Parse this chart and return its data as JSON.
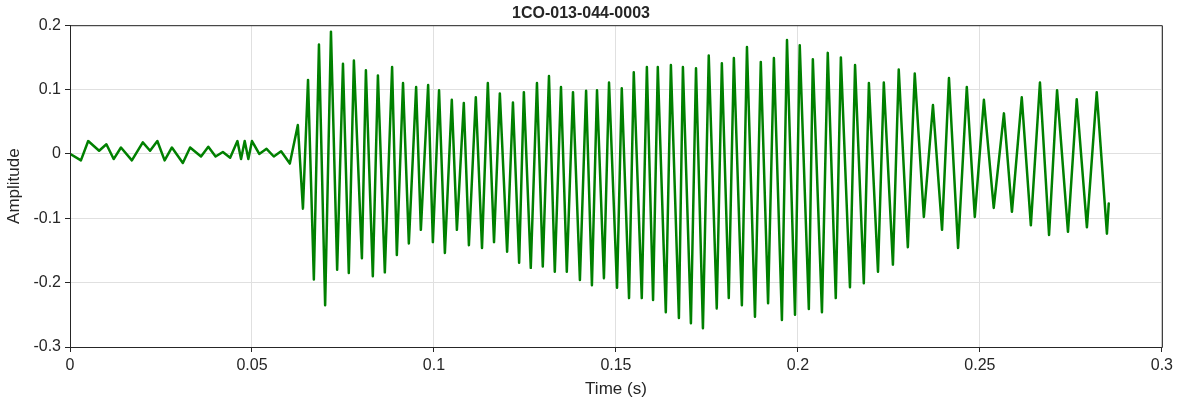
{
  "chart_data": {
    "type": "line",
    "title": "1CO-013-044-0003",
    "xlabel": "Time (s)",
    "ylabel": "Amplitude",
    "xlim": [
      0,
      0.3
    ],
    "xticks": [
      0,
      0.05,
      0.1,
      0.15,
      0.2,
      0.25,
      0.3
    ],
    "ylim": [
      -0.3,
      0.2
    ],
    "yticks": [
      -0.3,
      -0.2,
      -0.1,
      0,
      0.1,
      0.2
    ],
    "grid": true,
    "marker": "none",
    "line_style": "solid",
    "series": [
      {
        "color": "#008000",
        "x": [
          0,
          0.003,
          0.005,
          0.008,
          0.01,
          0.012,
          0.014,
          0.017,
          0.02,
          0.022,
          0.024,
          0.026,
          0.028,
          0.031,
          0.033,
          0.036,
          0.038,
          0.04,
          0.042,
          0.044,
          0.046,
          0.047,
          0.048,
          0.049,
          0.05,
          0.052,
          0.054,
          0.056,
          0.058,
          0.0604,
          0.0626,
          0.064,
          0.0654,
          0.067,
          0.0684,
          0.0701,
          0.0717,
          0.0734,
          0.075,
          0.0766,
          0.078,
          0.0802,
          0.0813,
          0.0832,
          0.0846,
          0.0865,
          0.0885,
          0.0898,
          0.0915,
          0.0931,
          0.0951,
          0.0964,
          0.0984,
          0.0997,
          0.1014,
          0.103,
          0.1049,
          0.1063,
          0.1082,
          0.1096,
          0.1115,
          0.1132,
          0.1148,
          0.1165,
          0.1181,
          0.1201,
          0.1217,
          0.1234,
          0.1247,
          0.1266,
          0.1283,
          0.1299,
          0.1316,
          0.1332,
          0.1349,
          0.1365,
          0.1382,
          0.1401,
          0.1418,
          0.1434,
          0.1448,
          0.1467,
          0.1481,
          0.1503,
          0.1516,
          0.1536,
          0.1549,
          0.1571,
          0.1585,
          0.1602,
          0.1615,
          0.1637,
          0.1651,
          0.1673,
          0.1684,
          0.1706,
          0.172,
          0.1739,
          0.1755,
          0.1777,
          0.1791,
          0.181,
          0.1824,
          0.1846,
          0.186,
          0.1882,
          0.1898,
          0.1918,
          0.1934,
          0.1956,
          0.197,
          0.1992,
          0.2005,
          0.203,
          0.2041,
          0.2066,
          0.2082,
          0.2104,
          0.2118,
          0.2143,
          0.2157,
          0.2181,
          0.2195,
          0.222,
          0.2236,
          0.2261,
          0.2277,
          0.2302,
          0.2321,
          0.2346,
          0.2371,
          0.2396,
          0.2415,
          0.244,
          0.2464,
          0.2486,
          0.2511,
          0.2538,
          0.2566,
          0.2588,
          0.2615,
          0.264,
          0.2665,
          0.269,
          0.2712,
          0.2742,
          0.2766,
          0.2794,
          0.2821,
          0.2849,
          0.2854
        ],
        "values": [
          0,
          -0.01,
          0.02,
          0.005,
          0.015,
          -0.008,
          0.01,
          -0.01,
          0.018,
          0.005,
          0.02,
          -0.01,
          0.01,
          -0.014,
          0.01,
          -0.004,
          0.011,
          -0.004,
          0.003,
          -0.006,
          0.02,
          -0.008,
          0.02,
          -0.008,
          0.02,
          0,
          0.008,
          -0.004,
          0.004,
          -0.015,
          0.045,
          -0.085,
          0.115,
          -0.195,
          0.17,
          -0.235,
          0.19,
          -0.18,
          0.14,
          -0.185,
          0.145,
          -0.162,
          0.13,
          -0.19,
          0.122,
          -0.184,
          0.135,
          -0.157,
          0.11,
          -0.139,
          0.104,
          -0.118,
          0.107,
          -0.137,
          0.099,
          -0.154,
          0.084,
          -0.118,
          0.079,
          -0.142,
          0.088,
          -0.146,
          0.11,
          -0.137,
          0.094,
          -0.152,
          0.08,
          -0.169,
          0.096,
          -0.177,
          0.11,
          -0.175,
          0.121,
          -0.183,
          0.104,
          -0.183,
          0.096,
          -0.196,
          0.098,
          -0.204,
          0.099,
          -0.193,
          0.111,
          -0.208,
          0.102,
          -0.224,
          0.127,
          -0.224,
          0.135,
          -0.227,
          0.135,
          -0.246,
          0.138,
          -0.255,
          0.135,
          -0.263,
          0.133,
          -0.271,
          0.153,
          -0.24,
          0.141,
          -0.224,
          0.149,
          -0.235,
          0.166,
          -0.253,
          0.143,
          -0.232,
          0.149,
          -0.258,
          0.177,
          -0.25,
          0.169,
          -0.241,
          0.147,
          -0.246,
          0.157,
          -0.224,
          0.15,
          -0.207,
          0.138,
          -0.201,
          0.11,
          -0.183,
          0.111,
          -0.172,
          0.131,
          -0.145,
          0.125,
          -0.098,
          0.076,
          -0.118,
          0.118,
          -0.146,
          0.104,
          -0.098,
          0.084,
          -0.084,
          0.063,
          -0.09,
          0.088,
          -0.111,
          0.111,
          -0.126,
          0.099,
          -0.121,
          0.085,
          -0.114,
          0.096,
          -0.124,
          -0.077
        ]
      }
    ]
  }
}
